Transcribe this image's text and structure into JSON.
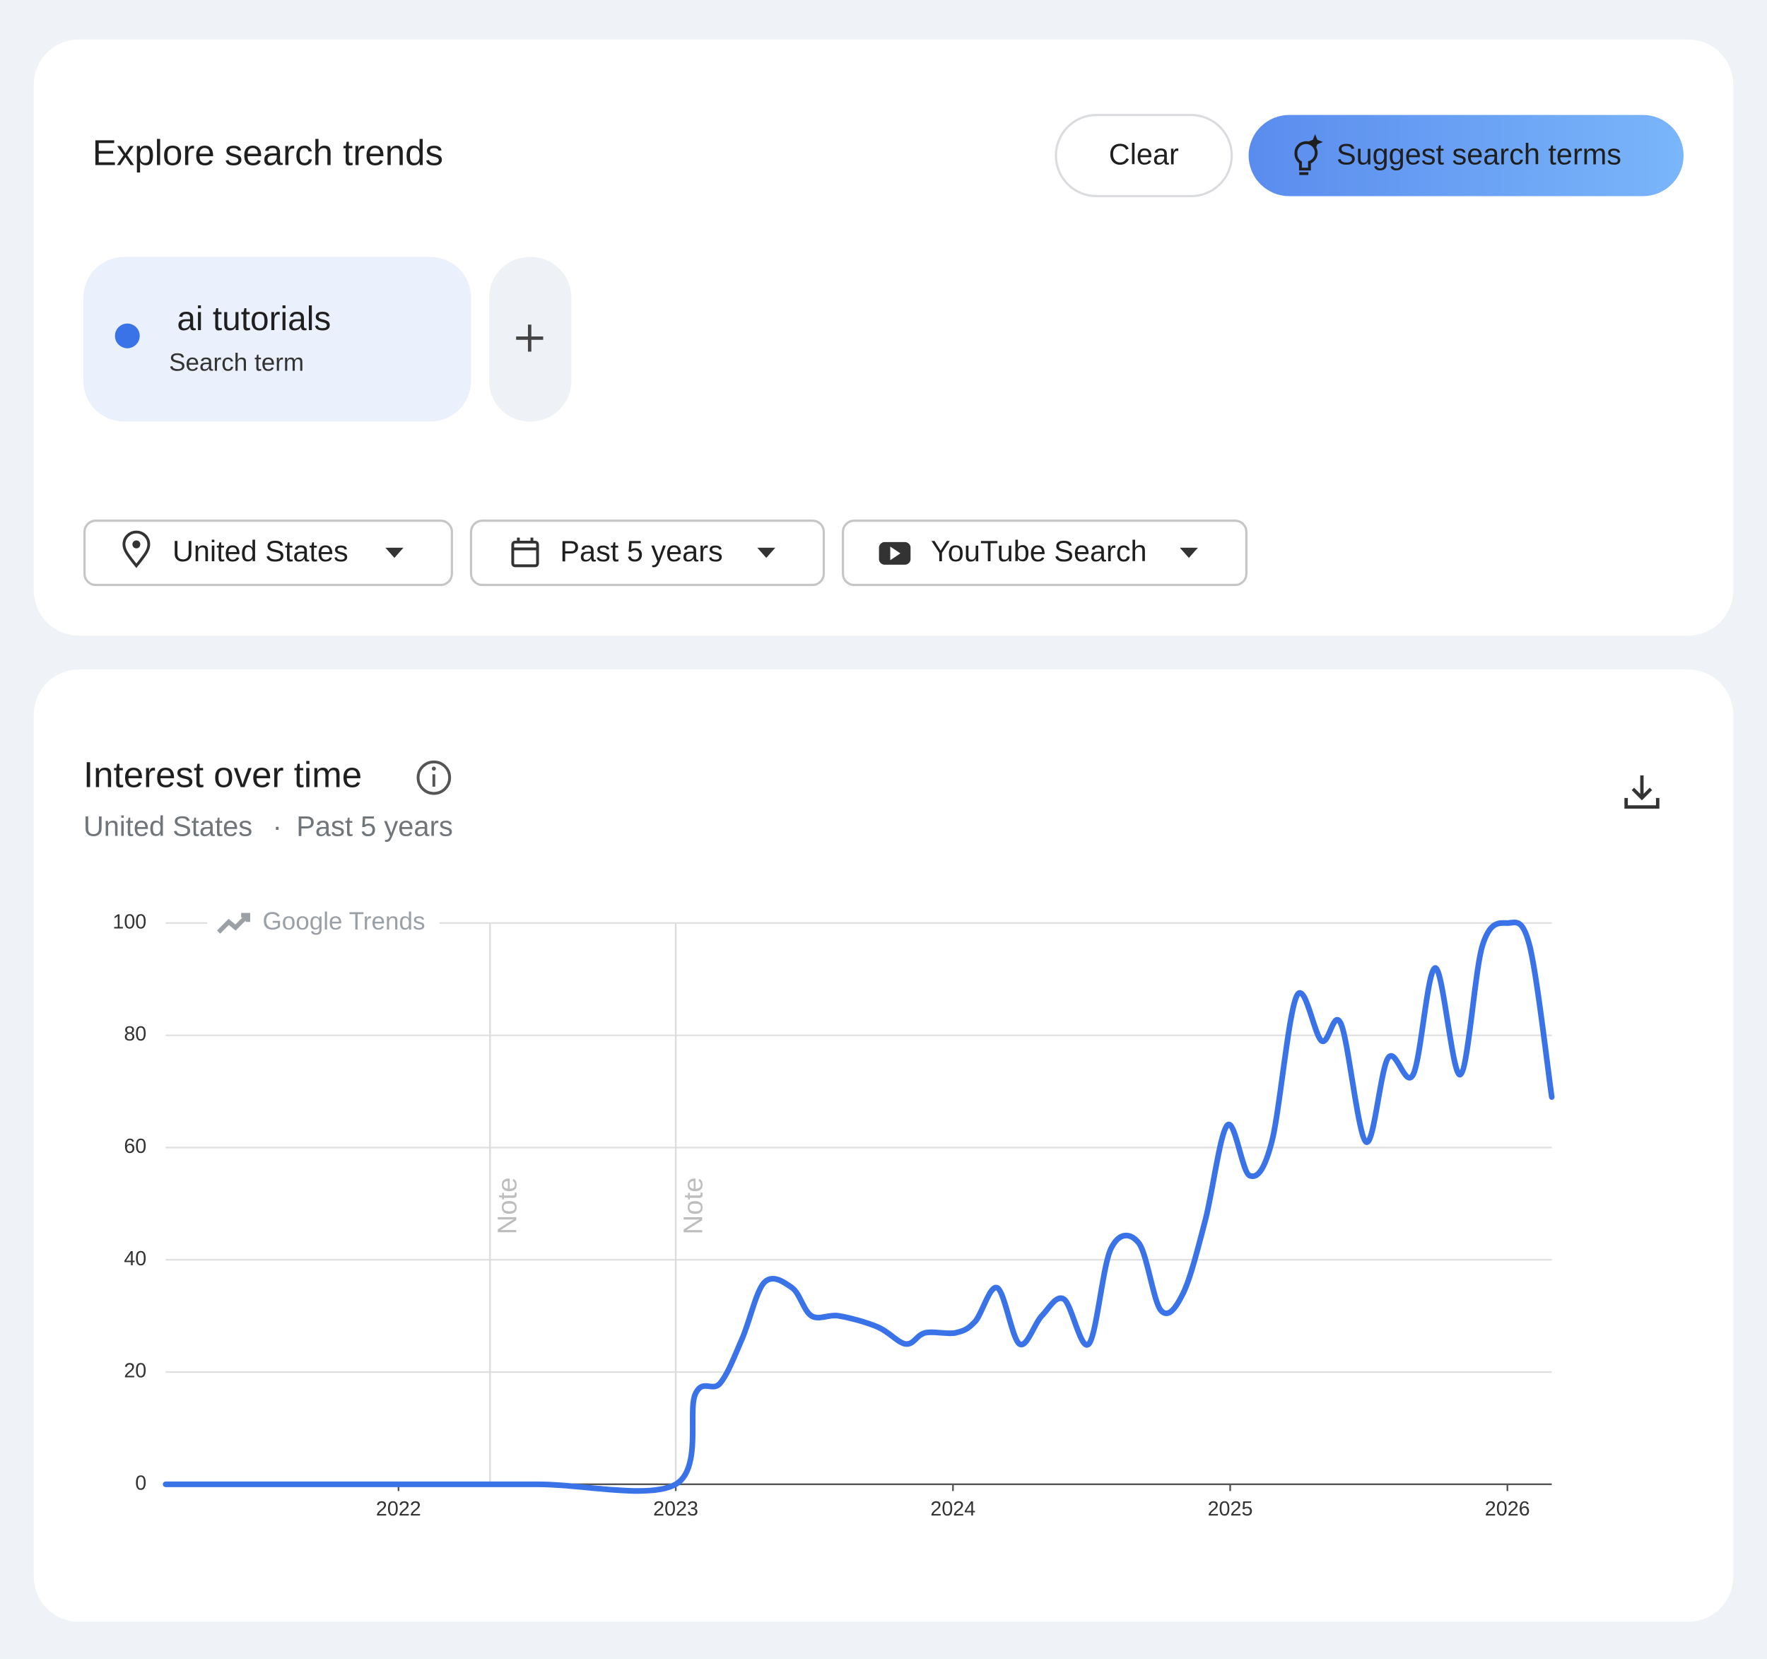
{
  "header": {
    "title": "Explore search trends",
    "clear_button": "Clear",
    "suggest_button": "Suggest search terms"
  },
  "term_chip": {
    "caption": "Search term"
  },
  "filters": {
    "location": "United States",
    "period": "Past 5 years",
    "source": "YouTube Search"
  },
  "chart_card": {
    "subtitle_location": "United States",
    "separator": "·",
    "subtitle_period": "Past 5 years",
    "watermark": "Google Trends"
  },
  "chart_data": {
    "type": "line",
    "title": "Interest over time",
    "x": [
      2021.16,
      2022.0,
      2022.5,
      2023.0,
      2023.07,
      2023.16,
      2023.24,
      2023.32,
      2023.42,
      2023.49,
      2023.59,
      2023.73,
      2023.83,
      2023.9,
      2024.01,
      2024.08,
      2024.16,
      2024.24,
      2024.32,
      2024.4,
      2024.49,
      2024.57,
      2024.67,
      2024.75,
      2024.83,
      2024.91,
      2024.99,
      2025.07,
      2025.15,
      2025.24,
      2025.33,
      2025.4,
      2025.49,
      2025.57,
      2025.66,
      2025.74,
      2025.83,
      2025.91,
      2026.0,
      2026.08,
      2026.16
    ],
    "series": [
      {
        "name": "ai tutorials",
        "color": "#3a73e8",
        "values": [
          0,
          0,
          0,
          0,
          16,
          18,
          26,
          36,
          35,
          30,
          30,
          28,
          25,
          27,
          27,
          29,
          35,
          25,
          30,
          33,
          25,
          42,
          43,
          31,
          34,
          47,
          64,
          55,
          61,
          87,
          79,
          82,
          61,
          76,
          73,
          92,
          73,
          96,
          100,
          96,
          69
        ]
      }
    ],
    "xlim": [
      2021.16,
      2026.16
    ],
    "xticks": [
      2022,
      2023,
      2024,
      2025,
      2026
    ],
    "ylim": [
      0,
      100
    ],
    "yticks": [
      0,
      20,
      40,
      60,
      80,
      100
    ],
    "grid": true,
    "annotations": [
      {
        "x": 2022.33,
        "text": "Note"
      },
      {
        "x": 2023.0,
        "text": "Note"
      }
    ]
  }
}
